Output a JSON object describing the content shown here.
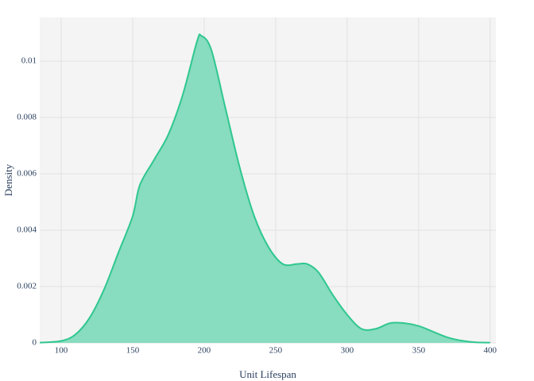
{
  "chart_data": {
    "type": "area",
    "x_label": "Unit Lifespan",
    "y_label": "Density",
    "series": [
      {
        "name": "Unit Lifespan",
        "color": "#2fc78f",
        "fill": "#88dcbf",
        "x": [
          85,
          100,
          110,
          120,
          130,
          140,
          150,
          155,
          165,
          175,
          185,
          195,
          198,
          205,
          215,
          225,
          235,
          245,
          255,
          265,
          272,
          280,
          290,
          300,
          310,
          320,
          330,
          340,
          350,
          360,
          370,
          380,
          390,
          400
        ],
        "values": [
          1e-05,
          7e-05,
          0.0003,
          0.0009,
          0.0019,
          0.0032,
          0.0045,
          0.0056,
          0.0065,
          0.0074,
          0.0088,
          0.0107,
          0.0109,
          0.0104,
          0.0083,
          0.0062,
          0.0045,
          0.0034,
          0.0028,
          0.0028,
          0.0028,
          0.0025,
          0.0017,
          0.001,
          0.0005,
          0.0005,
          0.0007,
          0.0007,
          0.0006,
          0.0004,
          0.0002,
          8e-05,
          2e-05,
          1e-05
        ]
      }
    ],
    "xlim": [
      85,
      404
    ],
    "xticks": [
      100,
      150,
      200,
      250,
      300,
      350,
      400
    ],
    "ylim": [
      0,
      0.01155
    ],
    "yticks": [
      0,
      0.002,
      0.004,
      0.006,
      0.008,
      0.01
    ],
    "grid": true
  }
}
